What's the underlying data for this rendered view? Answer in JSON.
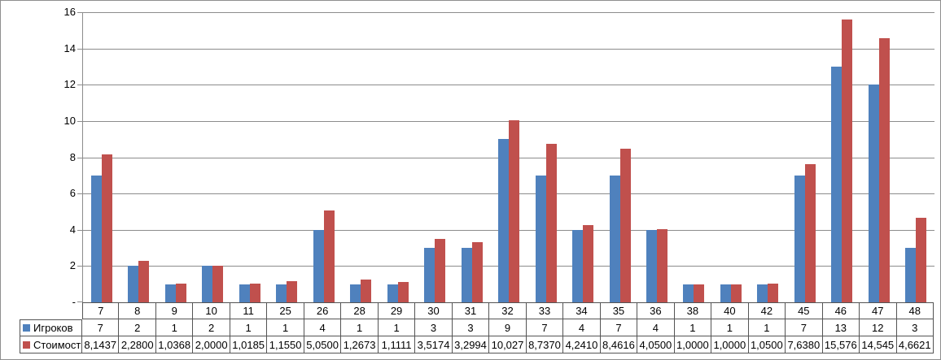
{
  "chart_data": {
    "type": "bar",
    "title": "",
    "xlabel": "",
    "ylabel": "",
    "categories": [
      "7",
      "8",
      "9",
      "10",
      "11",
      "25",
      "26",
      "28",
      "29",
      "30",
      "31",
      "32",
      "33",
      "34",
      "35",
      "36",
      "38",
      "40",
      "42",
      "45",
      "46",
      "47",
      "48"
    ],
    "series": [
      {
        "name": "Игроков",
        "color": "#4F81BD",
        "values": [
          7,
          2,
          1,
          2,
          1,
          1,
          4,
          1,
          1,
          3,
          3,
          9,
          7,
          4,
          7,
          4,
          1,
          1,
          1,
          7,
          13,
          12,
          3
        ]
      },
      {
        "name": "Стоимость",
        "color": "#C0504D",
        "values": [
          8.1437,
          2.28,
          1.0368,
          2.0,
          1.0185,
          1.155,
          5.05,
          1.2673,
          1.1111,
          3.5174,
          3.2994,
          10.027,
          8.737,
          4.241,
          8.4616,
          4.05,
          1.0,
          1.0,
          1.05,
          7.638,
          15.576,
          14.545,
          4.6621
        ]
      }
    ],
    "ylim": [
      0,
      16
    ],
    "y_tick_step": 2,
    "y_tick_labels": [
      "16",
      "14",
      "12",
      "10",
      "8",
      "6",
      "4",
      "2",
      "-"
    ],
    "grid": true,
    "legend_position": "data-table-left"
  },
  "data_table": {
    "header_cells": [
      "7",
      "8",
      "9",
      "10",
      "11",
      "25",
      "26",
      "28",
      "29",
      "30",
      "31",
      "32",
      "33",
      "34",
      "35",
      "36",
      "38",
      "40",
      "42",
      "45",
      "46",
      "47",
      "48"
    ],
    "rows": [
      {
        "label": "Игроков",
        "swatch_color": "#4F81BD",
        "cells": [
          "7",
          "2",
          "1",
          "2",
          "1",
          "1",
          "4",
          "1",
          "1",
          "3",
          "3",
          "9",
          "7",
          "4",
          "7",
          "4",
          "1",
          "1",
          "1",
          "7",
          "13",
          "12",
          "3"
        ]
      },
      {
        "label": "Стоимость",
        "swatch_color": "#C0504D",
        "cells": [
          "8,1437",
          "2,2800",
          "1,0368",
          "2,0000",
          "1,0185",
          "1,1550",
          "5,0500",
          "1,2673",
          "1,1111",
          "3,5174",
          "3,2994",
          "10,027",
          "8,7370",
          "4,2410",
          "8,4616",
          "4,0500",
          "1,0000",
          "1,0000",
          "1,0500",
          "7,6380",
          "15,576",
          "14,545",
          "4,6621"
        ]
      }
    ]
  },
  "colors": {
    "series_players": "#4F81BD",
    "series_cost": "#C0504D",
    "gridline": "#8C8C8C",
    "axis": "#8C8C8C",
    "table_border": "#545454",
    "frame_border": "#8E8E8E",
    "background": "#FFFFFF",
    "text": "#000000"
  }
}
